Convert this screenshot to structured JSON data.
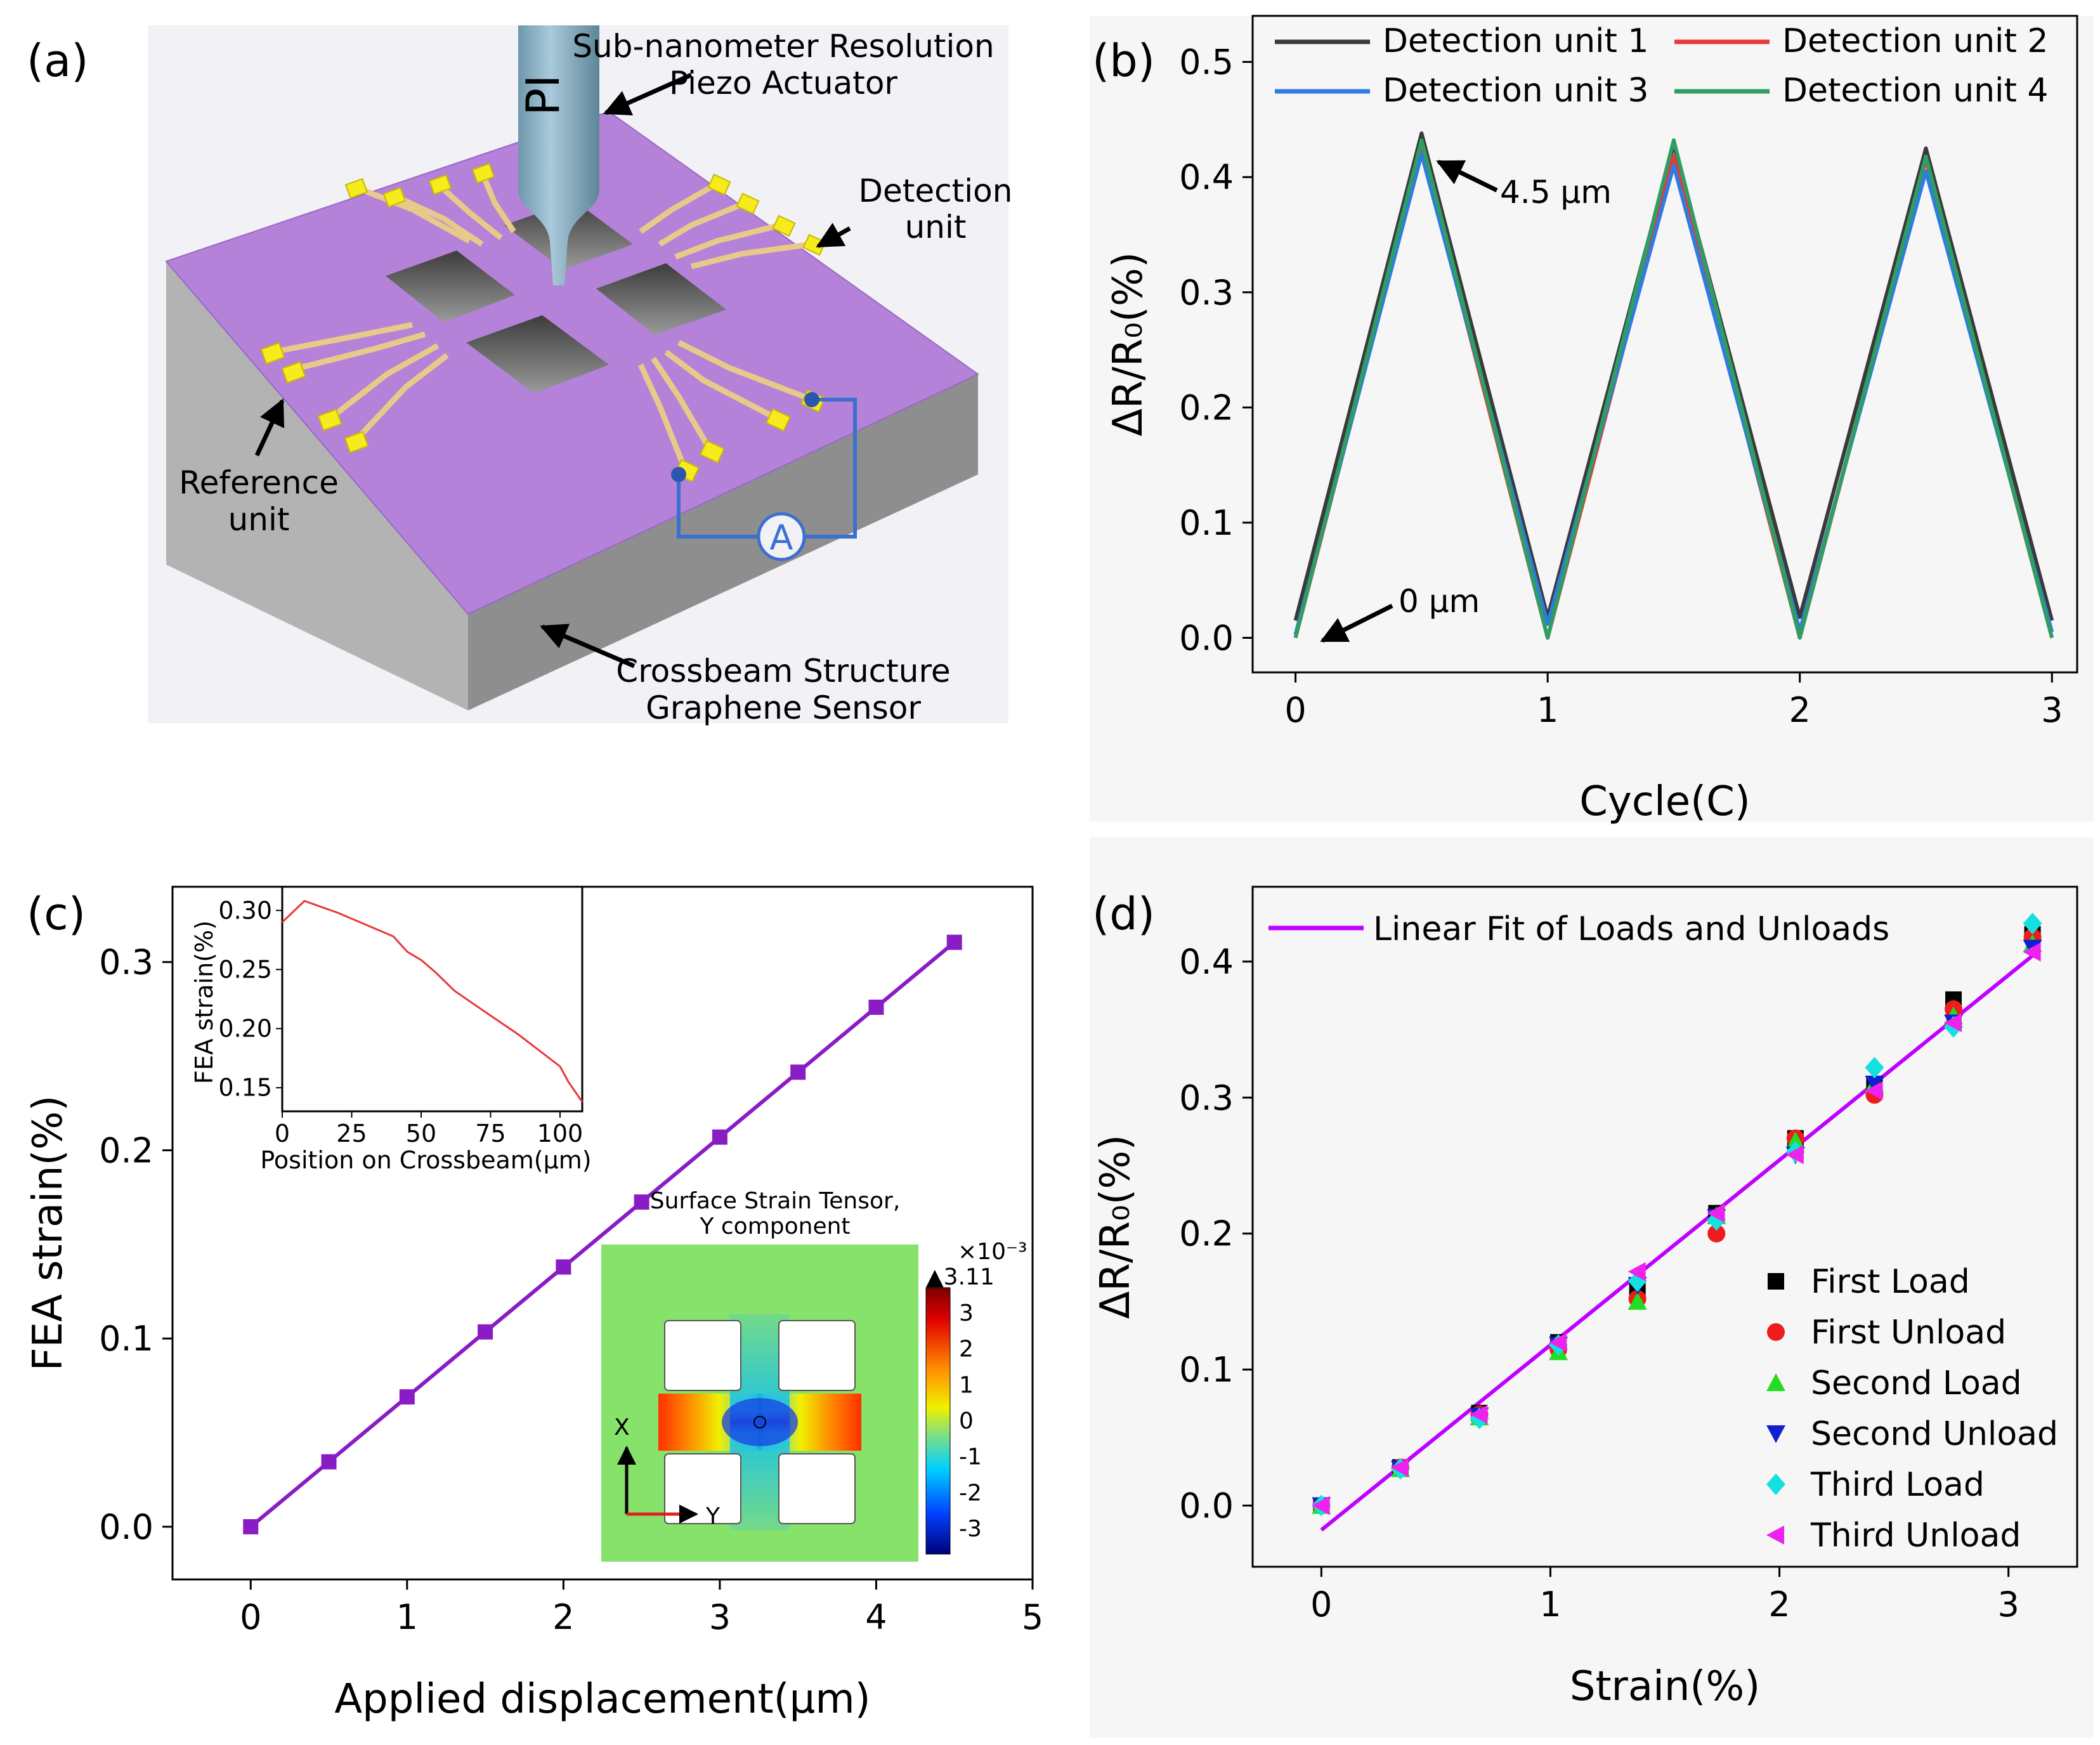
{
  "panels": {
    "a": "(a)",
    "b": "(b)",
    "c": "(c)",
    "d": "(d)"
  },
  "colors": {
    "purple_surface": "#b37fd6",
    "gray_base": "#a9a9a9",
    "pad_yellow": "#f4e825",
    "fit_magenta": "#c000ff",
    "fea_purple": "#8a1cc6"
  },
  "panel_a": {
    "probe_label": "PI",
    "callout_actuator_1": "Sub-nanometer Resolution",
    "callout_actuator_2": "Piezo Actuator",
    "callout_detection_1": "Detection",
    "callout_detection_2": "unit",
    "callout_reference_1": "Reference",
    "callout_reference_2": "unit",
    "callout_structure_1": "Crossbeam Structure",
    "callout_structure_2": "Graphene Sensor",
    "ammeter_label": "A"
  },
  "chart_data": [
    {
      "id": "b",
      "type": "line",
      "title": "",
      "xlabel": "Cycle(C)",
      "ylabel": "ΔR/R₀(%)",
      "xlim": [
        -0.17,
        3.1
      ],
      "ylim": [
        -0.03,
        0.54
      ],
      "xticks": [
        0,
        1,
        2,
        3
      ],
      "yticks": [
        0.0,
        0.1,
        0.2,
        0.3,
        0.4,
        0.5
      ],
      "ytick_labels": [
        "0.0",
        "0.1",
        "0.2",
        "0.3",
        "0.4",
        "0.5"
      ],
      "legend_position": "top",
      "annotations": [
        "4.5 μm",
        "0 μm"
      ],
      "series": [
        {
          "name": "Detection unit 1",
          "color": "#3a3a3a",
          "x": [
            0,
            0.5,
            1,
            1.5,
            2,
            2.5,
            3
          ],
          "values": [
            0.015,
            0.438,
            0.018,
            0.428,
            0.018,
            0.425,
            0.015
          ]
        },
        {
          "name": "Detection unit 2",
          "color": "#e8393b",
          "x": [
            0,
            0.5,
            1,
            1.5,
            2,
            2.5,
            3
          ],
          "values": [
            0.0,
            0.425,
            0.0,
            0.418,
            0.0,
            0.415,
            0.0
          ]
        },
        {
          "name": "Detection unit 3",
          "color": "#2f7be0",
          "x": [
            0,
            0.5,
            1,
            1.5,
            2,
            2.5,
            3
          ],
          "values": [
            0.003,
            0.42,
            0.012,
            0.41,
            0.006,
            0.405,
            0.005
          ]
        },
        {
          "name": "Detection unit 4",
          "color": "#2e9e63",
          "x": [
            0,
            0.5,
            1,
            1.5,
            2,
            2.5,
            3
          ],
          "values": [
            0.0,
            0.432,
            0.0,
            0.432,
            0.0,
            0.418,
            0.0
          ]
        }
      ]
    },
    {
      "id": "c",
      "type": "line",
      "title": "",
      "xlabel": "Applied displacement(μm)",
      "ylabel": "FEA strain(%)",
      "xlim": [
        -0.5,
        5
      ],
      "ylim": [
        -0.028,
        0.34
      ],
      "xticks": [
        0,
        1,
        2,
        3,
        4,
        5
      ],
      "yticks": [
        0.0,
        0.1,
        0.2,
        0.3
      ],
      "ytick_labels": [
        "0.0",
        "0.1",
        "0.2",
        "0.3"
      ],
      "series": [
        {
          "name": "FEA strain",
          "color": "#8a1cc6",
          "x": [
            0,
            0.5,
            1,
            1.5,
            2,
            2.5,
            3,
            3.5,
            4,
            4.5
          ],
          "values": [
            0.0,
            0.0345,
            0.069,
            0.1035,
            0.138,
            0.1725,
            0.207,
            0.2415,
            0.276,
            0.3105
          ]
        }
      ],
      "inset": {
        "type": "line",
        "xlabel": "Position on Crossbeam(μm)",
        "ylabel": "FEA strain(%)",
        "xlim": [
          0,
          108
        ],
        "ylim": [
          0.13,
          0.32
        ],
        "xticks": [
          0,
          25,
          50,
          75,
          100
        ],
        "yticks": [
          0.15,
          0.2,
          0.25,
          0.3
        ],
        "ytick_labels": [
          "0.15",
          "0.20",
          "0.25",
          "0.30"
        ],
        "color": "#e8393b",
        "x": [
          0,
          8,
          20,
          40,
          45,
          50,
          55,
          62,
          75,
          85,
          100,
          103,
          108
        ],
        "values": [
          0.29,
          0.308,
          0.298,
          0.278,
          0.265,
          0.258,
          0.248,
          0.232,
          0.211,
          0.195,
          0.168,
          0.155,
          0.138
        ]
      },
      "contour": {
        "title_1": "Surface Strain Tensor,",
        "title_2": "Y component",
        "scale_exponent": "×10⁻³",
        "max_label": "▲3.11",
        "colorbar_ticks": [
          "3",
          "2",
          "1",
          "0",
          "-1",
          "-2",
          "-3"
        ],
        "axis_x": "X",
        "axis_y": "Y"
      }
    },
    {
      "id": "d",
      "type": "scatter",
      "title": "",
      "xlabel": "Strain(%)",
      "ylabel": "ΔR/R₀(%)",
      "xlim": [
        -0.3,
        3.3
      ],
      "ylim": [
        -0.045,
        0.455
      ],
      "xticks": [
        0,
        1,
        2,
        3
      ],
      "yticks": [
        0.0,
        0.1,
        0.2,
        0.3,
        0.4
      ],
      "ytick_labels": [
        "0.0",
        "0.1",
        "0.2",
        "0.3",
        "0.4"
      ],
      "fit": {
        "name": "Linear Fit of Loads and Unloads",
        "color": "#c000ff",
        "x": [
          0,
          3.11
        ],
        "values": [
          -0.018,
          0.405
        ]
      },
      "x": [
        0,
        0.345,
        0.69,
        1.035,
        1.38,
        1.725,
        2.07,
        2.415,
        2.76,
        3.105
      ],
      "series": [
        {
          "name": "First Load",
          "color": "#000000",
          "marker": "square",
          "values": [
            0.0,
            0.028,
            0.068,
            0.12,
            0.158,
            0.215,
            0.27,
            0.31,
            0.372,
            0.42
          ]
        },
        {
          "name": "First Unload",
          "color": "#ee1c1c",
          "marker": "circle",
          "values": [
            0.0,
            0.028,
            0.067,
            0.115,
            0.152,
            0.2,
            0.27,
            0.302,
            0.365,
            0.418
          ]
        },
        {
          "name": "Second Load",
          "color": "#22dd22",
          "marker": "triangle-up",
          "values": [
            0.0,
            0.027,
            0.065,
            0.113,
            0.15,
            0.213,
            0.268,
            0.31,
            0.36,
            0.413
          ]
        },
        {
          "name": "Second Unload",
          "color": "#1020d0",
          "marker": "triangle-down",
          "values": [
            0.0,
            0.027,
            0.066,
            0.118,
            0.162,
            0.212,
            0.258,
            0.31,
            0.355,
            0.41
          ]
        },
        {
          "name": "Third Load",
          "color": "#15e0e0",
          "marker": "diamond",
          "values": [
            0.0,
            0.027,
            0.064,
            0.118,
            0.165,
            0.21,
            0.26,
            0.322,
            0.352,
            0.428
          ]
        },
        {
          "name": "Third Unload",
          "color": "#ee22ee",
          "marker": "triangle-left",
          "values": [
            0.0,
            0.028,
            0.067,
            0.12,
            0.172,
            0.215,
            0.258,
            0.305,
            0.355,
            0.407
          ]
        }
      ]
    }
  ]
}
